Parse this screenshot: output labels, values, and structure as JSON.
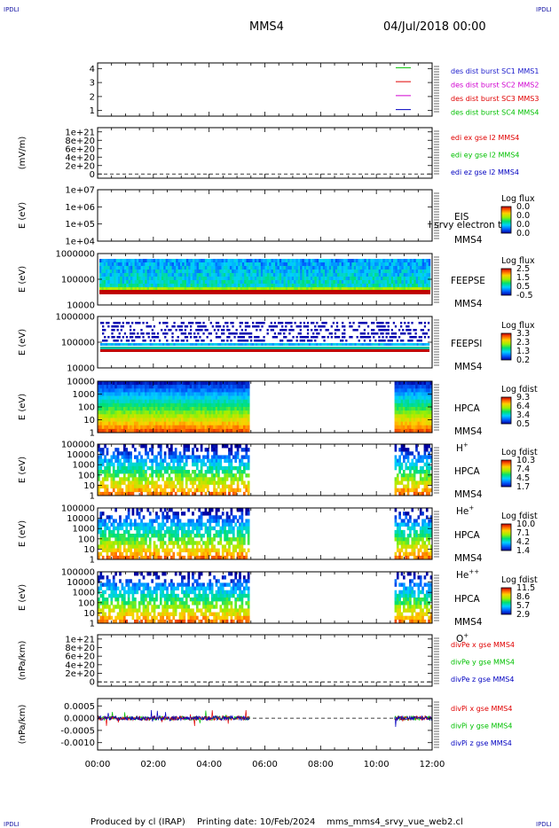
{
  "header": {
    "corner_label": "IPDLI",
    "spacecraft": "MMS4",
    "date": "04/Jul/2018 00:00"
  },
  "footer": {
    "produced_by": "Produced by cl (IRAP)",
    "printing_date": "Printing date: 10/Feb/2024",
    "script": "mms_mms4_srvy_vue_web2.cl"
  },
  "colors": {
    "mms1": "#00c000",
    "mms2": "#e00000",
    "mms3": "#d000d0",
    "mms4": "#0000c0",
    "ex": "#e00000",
    "ey": "#00c000",
    "ez": "#0000c0"
  },
  "chart_data": [
    {
      "id": "des-dist",
      "type": "line",
      "y_ticks": [
        "1",
        "2",
        "3",
        "4"
      ],
      "ylim": [
        0.6,
        4.4
      ],
      "legend": [
        {
          "label": "des dist burst SC1 MMS1",
          "color": "#1a1acc"
        },
        {
          "label": "des dist burst SC2 MMS2",
          "color": "#d000d0"
        },
        {
          "label": "des dist burst SC3 MMS3",
          "color": "#e00000"
        },
        {
          "label": "des dist burst SC4 MMS4",
          "color": "#00c000"
        }
      ],
      "series": [
        {
          "color": "#00c000",
          "y": 4
        },
        {
          "color": "#e00000",
          "y": 3
        },
        {
          "color": "#d000d0",
          "y": 2
        },
        {
          "color": "#0000c0",
          "y": 1
        }
      ]
    },
    {
      "id": "edi-e",
      "type": "line",
      "ylabel": "(mV/m)",
      "y_ticks": [
        "0",
        "2e+20",
        "4e+20",
        "6e+20",
        "8e+20",
        "1e+21"
      ],
      "ylim": [
        -1e+20,
        1.1e+21
      ],
      "legend": [
        {
          "label": "edi ex gse l2 MMS4",
          "color": "#e00000"
        },
        {
          "label": "edi ey gse l2 MMS4",
          "color": "#00c000"
        },
        {
          "label": "edi ez gse l2 MMS4",
          "color": "#0000c0"
        }
      ]
    },
    {
      "id": "eis",
      "type": "heatmap",
      "ylabel": "E (eV)",
      "y_ticks": [
        "1e+04",
        "1e+05",
        "1e+06",
        "1e+07"
      ],
      "instrument": [
        "EIS",
        "MMS4"
      ],
      "overlay_text": "l srvy electron to",
      "colorbar": {
        "title": "Log flux",
        "values": [
          "0.0",
          "0.0",
          "0.0",
          "0.0"
        ]
      }
    },
    {
      "id": "feeps-e",
      "type": "heatmap",
      "ylabel": "E (eV)",
      "y_ticks": [
        "10000",
        "100000",
        "1000000"
      ],
      "instrument": [
        "FEEPSE",
        "MMS4"
      ],
      "colorbar": {
        "title": "Log flux",
        "values": [
          "2.5",
          "1.5",
          "0.5",
          "-0.5"
        ]
      }
    },
    {
      "id": "feeps-i",
      "type": "heatmap",
      "ylabel": "E (eV)",
      "y_ticks": [
        "10000",
        "100000",
        "1000000"
      ],
      "instrument": [
        "FEEPSI",
        "MMS4"
      ],
      "colorbar": {
        "title": "Log flux",
        "values": [
          "3.3",
          "2.3",
          "1.3",
          "0.2"
        ]
      }
    },
    {
      "id": "hpca-h",
      "type": "heatmap",
      "ylabel": "E (eV)",
      "y_ticks": [
        "1",
        "10",
        "100",
        "1000",
        "10000"
      ],
      "instrument": [
        "HPCA",
        "MMS4",
        "H",
        "+"
      ],
      "colorbar": {
        "title": "Log fdist",
        "values": [
          "9.3",
          "6.4",
          "3.4",
          "0.5"
        ]
      },
      "data_intervals_h": [
        [
          0.0,
          5.45
        ],
        [
          10.65,
          12.0
        ]
      ]
    },
    {
      "id": "hpca-he",
      "type": "heatmap",
      "ylabel": "E (eV)",
      "y_ticks": [
        "1",
        "10",
        "100",
        "1000",
        "10000",
        "100000"
      ],
      "instrument": [
        "HPCA",
        "MMS4",
        "He",
        "+"
      ],
      "colorbar": {
        "title": "Log fdist",
        "values": [
          "10.3",
          "7.4",
          "4.5",
          "1.7"
        ]
      },
      "data_intervals_h": [
        [
          0.0,
          5.45
        ],
        [
          10.65,
          12.0
        ]
      ]
    },
    {
      "id": "hpca-he2",
      "type": "heatmap",
      "ylabel": "E (eV)",
      "y_ticks": [
        "1",
        "10",
        "100",
        "1000",
        "10000",
        "100000"
      ],
      "instrument": [
        "HPCA",
        "MMS4",
        "He",
        "++"
      ],
      "colorbar": {
        "title": "Log fdist",
        "values": [
          "10.0",
          "7.1",
          "4.2",
          "1.4"
        ]
      },
      "data_intervals_h": [
        [
          0.0,
          5.45
        ],
        [
          10.65,
          12.0
        ]
      ]
    },
    {
      "id": "hpca-o",
      "type": "heatmap",
      "ylabel": "E (eV)",
      "y_ticks": [
        "1",
        "10",
        "100",
        "1000",
        "10000",
        "100000"
      ],
      "instrument": [
        "HPCA",
        "MMS4",
        "O",
        "+"
      ],
      "colorbar": {
        "title": "Log fdist",
        "values": [
          "11.5",
          "8.6",
          "5.7",
          "2.9"
        ]
      },
      "data_intervals_h": [
        [
          0.0,
          5.45
        ],
        [
          10.65,
          12.0
        ]
      ]
    },
    {
      "id": "divpe",
      "type": "line",
      "ylabel": "(nPa/km)",
      "y_ticks": [
        "0",
        "2e+20",
        "4e+20",
        "6e+20",
        "8e+20",
        "1e+21"
      ],
      "ylim": [
        -1e+20,
        1.1e+21
      ],
      "legend": [
        {
          "label": "divPe x gse MMS4",
          "color": "#e00000"
        },
        {
          "label": "divPe y gse MMS4",
          "color": "#00c000"
        },
        {
          "label": "divPe z gse MMS4",
          "color": "#0000c0"
        }
      ]
    },
    {
      "id": "divpi",
      "type": "line",
      "ylabel": "(nPa/km)",
      "y_ticks": [
        "-0.0010",
        "-0.0005",
        "0.0000",
        "0.0005"
      ],
      "ylim": [
        -0.0013,
        0.0008
      ],
      "legend": [
        {
          "label": "divPi x gse MMS4",
          "color": "#e00000"
        },
        {
          "label": "divPi y gse MMS4",
          "color": "#00c000"
        },
        {
          "label": "divPi z gse MMS4",
          "color": "#0000c0"
        }
      ],
      "data_intervals_h": [
        [
          0.0,
          5.45
        ],
        [
          10.65,
          12.0
        ]
      ]
    }
  ],
  "x_axis": {
    "ticks": [
      "00:00",
      "02:00",
      "04:00",
      "06:00",
      "08:00",
      "10:00",
      "12:00"
    ],
    "xlim_h": [
      0,
      12
    ]
  }
}
